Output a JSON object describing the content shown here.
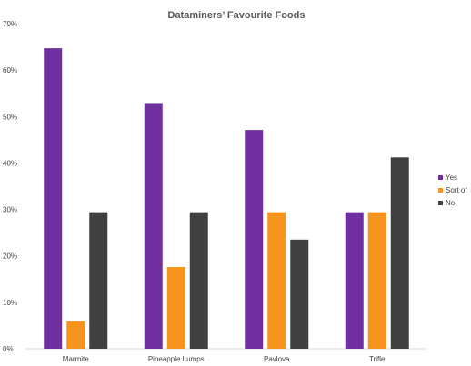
{
  "chart_data": {
    "type": "bar",
    "title": "Dataminers’ Favourite Foods",
    "xlabel": "",
    "ylabel": "",
    "categories": [
      "Marmite",
      "Pineapple Lumps",
      "Pavlova",
      "Trifle"
    ],
    "series": [
      {
        "name": "Yes",
        "color": "#7030A0",
        "values": [
          64.7,
          52.9,
          47.1,
          29.4
        ]
      },
      {
        "name": "Sort of",
        "color": "#F7941D",
        "values": [
          5.9,
          17.6,
          29.4,
          29.4
        ]
      },
      {
        "name": "No",
        "color": "#404040",
        "values": [
          29.4,
          29.4,
          23.5,
          41.2
        ]
      }
    ],
    "ylim": [
      0,
      70
    ],
    "yticks": [
      "0%",
      "10%",
      "20%",
      "30%",
      "40%",
      "50%",
      "60%",
      "70%"
    ],
    "grid": false,
    "legend_position": "right"
  }
}
